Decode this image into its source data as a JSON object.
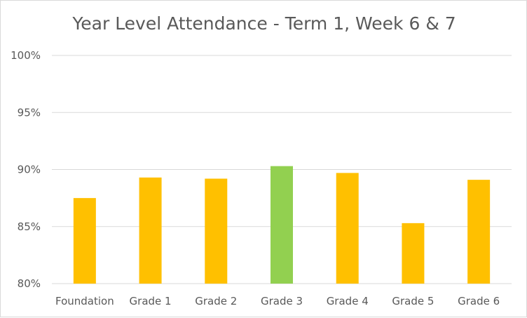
{
  "chart_data": {
    "type": "bar",
    "title": "Year Level Attendance - Term 1, Week 6 & 7",
    "categories": [
      "Foundation",
      "Grade 1",
      "Grade 2",
      "Grade 3",
      "Grade 4",
      "Grade 5",
      "Grade 6"
    ],
    "values": [
      87.5,
      89.3,
      89.2,
      90.3,
      89.7,
      85.3,
      89.1
    ],
    "bar_colors": [
      "#FFC000",
      "#FFC000",
      "#FFC000",
      "#92D050",
      "#FFC000",
      "#FFC000",
      "#FFC000"
    ],
    "ylim": [
      80,
      100
    ],
    "yticks": [
      80,
      85,
      90,
      95,
      100
    ],
    "ytick_labels": [
      "80%",
      "85%",
      "90%",
      "95%",
      "100%"
    ],
    "xlabel": "",
    "ylabel": "",
    "grid": true,
    "legend": "none"
  },
  "colors": {
    "gridline": "#d9d9d9",
    "text": "#595959"
  }
}
